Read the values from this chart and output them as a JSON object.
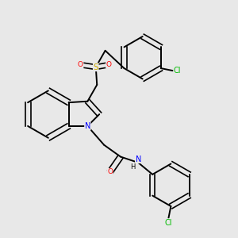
{
  "background_color": "#e8e8e8",
  "bond_color": "#000000",
  "atom_colors": {
    "N": "#0000ff",
    "O": "#ff0000",
    "S": "#ccaa00",
    "Cl": "#00bb00",
    "C": "#000000",
    "H": "#000000"
  },
  "figsize": [
    3.0,
    3.0
  ],
  "dpi": 100
}
